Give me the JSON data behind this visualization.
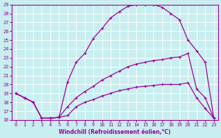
{
  "xlabel": "Windchill (Refroidissement éolien,°C)",
  "background_color": "#c8eef0",
  "line_color": "#990099",
  "grid_color": "#ffffff",
  "xlim": [
    -0.5,
    23.5
  ],
  "ylim": [
    16,
    29
  ],
  "xticks": [
    0,
    1,
    2,
    3,
    4,
    5,
    6,
    7,
    8,
    9,
    10,
    11,
    12,
    13,
    14,
    15,
    16,
    17,
    18,
    19,
    20,
    21,
    22,
    23
  ],
  "yticks": [
    16,
    17,
    18,
    19,
    20,
    21,
    22,
    23,
    24,
    25,
    26,
    27,
    28,
    29
  ],
  "line1_x": [
    0,
    1,
    2,
    3,
    4,
    5,
    6,
    7,
    8,
    9,
    10,
    11,
    12,
    13,
    14,
    15,
    16,
    17,
    18,
    19,
    20,
    21,
    22,
    23
  ],
  "line1_y": [
    19,
    18.5,
    18.0,
    16.2,
    16.2,
    16.3,
    16.5,
    17.5,
    18.0,
    18.3,
    18.7,
    19.0,
    19.3,
    19.5,
    19.7,
    19.8,
    19.9,
    20.0,
    20.0,
    20.0,
    20.2,
    18.5,
    17.3,
    16.2
  ],
  "line2_x": [
    0,
    1,
    2,
    3,
    4,
    5,
    6,
    7,
    8,
    9,
    10,
    11,
    12,
    13,
    14,
    15,
    16,
    17,
    18,
    19,
    20,
    21,
    22,
    23
  ],
  "line2_y": [
    19,
    18.5,
    18.0,
    16.2,
    16.2,
    16.3,
    17.5,
    18.5,
    19.2,
    19.8,
    20.5,
    21.0,
    21.5,
    22.0,
    22.3,
    22.5,
    22.7,
    22.8,
    23.0,
    23.1,
    23.5,
    19.5,
    18.5,
    16.2
  ],
  "line3_x": [
    0,
    1,
    2,
    3,
    4,
    5,
    6,
    7,
    8,
    9,
    10,
    11,
    12,
    13,
    14,
    15,
    16,
    17,
    18,
    19,
    20,
    21,
    22,
    23
  ],
  "line3_y": [
    19,
    18.5,
    18.0,
    16.2,
    16.2,
    16.3,
    20.3,
    22.5,
    23.5,
    25.2,
    26.3,
    27.5,
    28.2,
    28.8,
    29.0,
    29.0,
    29.0,
    28.7,
    28.0,
    27.3,
    25.0,
    23.8,
    22.5,
    16.2
  ]
}
